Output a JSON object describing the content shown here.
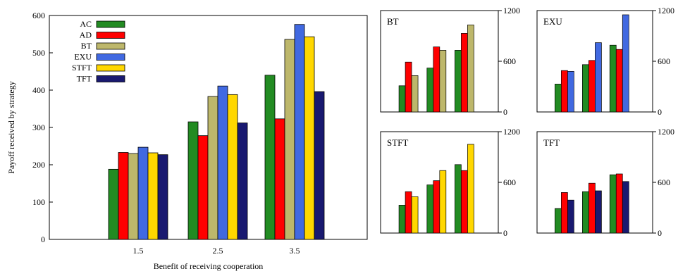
{
  "colors": {
    "AC": "#228B22",
    "AD": "#FF0000",
    "BT": "#BDB76B",
    "EXU": "#4169E1",
    "STFT": "#FFD700",
    "TFT": "#191970"
  },
  "chart_data": [
    {
      "type": "bar",
      "title": "",
      "xlabel": "Benefit of receiving cooperation",
      "ylabel": "Payoff received by strategy",
      "categories": [
        "1.5",
        "2.5",
        "3.5"
      ],
      "ylim": [
        0,
        600
      ],
      "yticks": [
        "0",
        "100",
        "200",
        "300",
        "400",
        "500",
        "600"
      ],
      "legend_position": "top-left",
      "series": [
        {
          "name": "AC",
          "color_key": "AC",
          "values": [
            188,
            315,
            440
          ]
        },
        {
          "name": "AD",
          "color_key": "AD",
          "values": [
            233,
            278,
            323
          ]
        },
        {
          "name": "BT",
          "color_key": "BT",
          "values": [
            230,
            383,
            536
          ]
        },
        {
          "name": "EXU",
          "color_key": "EXU",
          "values": [
            247,
            411,
            576
          ]
        },
        {
          "name": "STFT",
          "color_key": "STFT",
          "values": [
            232,
            388,
            543
          ]
        },
        {
          "name": "TFT",
          "color_key": "TFT",
          "values": [
            227,
            312,
            396
          ]
        }
      ]
    },
    {
      "type": "bar",
      "title": "BT",
      "categories": [
        "1.5",
        "2.5",
        "3.5"
      ],
      "ylim": [
        0,
        1200
      ],
      "yticks": [
        "0",
        "600",
        "1200"
      ],
      "series": [
        {
          "color_key": "AC",
          "values": [
            310,
            520,
            730
          ]
        },
        {
          "color_key": "AD",
          "values": [
            590,
            770,
            930
          ]
        },
        {
          "color_key": "BT",
          "values": [
            430,
            730,
            1030
          ]
        }
      ]
    },
    {
      "type": "bar",
      "title": "EXU",
      "categories": [
        "1.5",
        "2.5",
        "3.5"
      ],
      "ylim": [
        0,
        1200
      ],
      "yticks": [
        "0",
        "600",
        "1200"
      ],
      "series": [
        {
          "color_key": "AC",
          "values": [
            330,
            560,
            790
          ]
        },
        {
          "color_key": "AD",
          "values": [
            490,
            610,
            740
          ]
        },
        {
          "color_key": "EXU",
          "values": [
            480,
            820,
            1150
          ]
        }
      ]
    },
    {
      "type": "bar",
      "title": "STFT",
      "categories": [
        "1.5",
        "2.5",
        "3.5"
      ],
      "ylim": [
        0,
        1200
      ],
      "yticks": [
        "0",
        "600",
        "1200"
      ],
      "series": [
        {
          "color_key": "AC",
          "values": [
            330,
            570,
            810
          ]
        },
        {
          "color_key": "AD",
          "values": [
            490,
            620,
            740
          ]
        },
        {
          "color_key": "STFT",
          "values": [
            430,
            740,
            1050
          ]
        }
      ]
    },
    {
      "type": "bar",
      "title": "TFT",
      "categories": [
        "1.5",
        "2.5",
        "3.5"
      ],
      "ylim": [
        0,
        1200
      ],
      "yticks": [
        "0",
        "600",
        "1200"
      ],
      "series": [
        {
          "color_key": "AC",
          "values": [
            290,
            490,
            690
          ]
        },
        {
          "color_key": "AD",
          "values": [
            480,
            590,
            700
          ]
        },
        {
          "color_key": "TFT",
          "values": [
            390,
            500,
            610
          ]
        }
      ]
    }
  ]
}
